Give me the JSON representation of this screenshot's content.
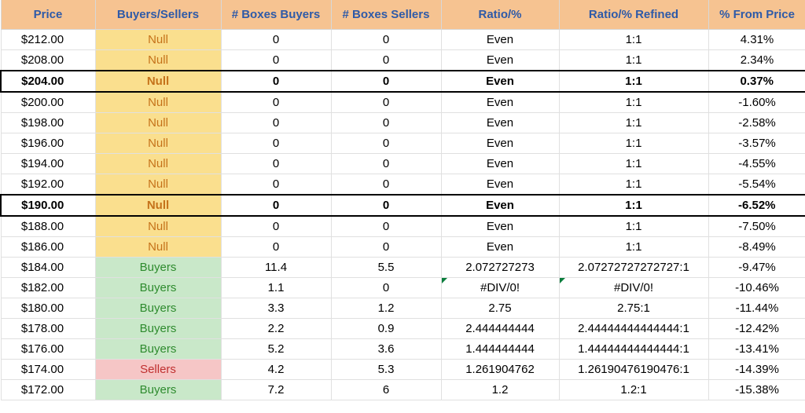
{
  "table": {
    "columns": [
      "Price",
      "Buyers/Sellers",
      "# Boxes Buyers",
      "# Boxes Sellers",
      "Ratio/%",
      "Ratio/% Refined",
      "% From Price"
    ],
    "header_bg": "#f6c391",
    "header_text_color": "#2e5aa8",
    "null_bg": "#fadf8e",
    "null_text": "#c5721a",
    "buyers_bg": "#c9e8c9",
    "buyers_text": "#2e8b2e",
    "sellers_bg": "#f6c6c6",
    "sellers_text": "#c03030",
    "grid_color": "#e0e0e0",
    "font_size": 15,
    "rows": [
      {
        "price": "$212.00",
        "bs": "Null",
        "bs_kind": "null",
        "buy": "0",
        "sell": "0",
        "ratio": "Even",
        "refined": "1:1",
        "pct": "4.31%",
        "bold": false,
        "thick": false
      },
      {
        "price": "$208.00",
        "bs": "Null",
        "bs_kind": "null",
        "buy": "0",
        "sell": "0",
        "ratio": "Even",
        "refined": "1:1",
        "pct": "2.34%",
        "bold": false,
        "thick": false
      },
      {
        "price": "$204.00",
        "bs": "Null",
        "bs_kind": "null",
        "buy": "0",
        "sell": "0",
        "ratio": "Even",
        "refined": "1:1",
        "pct": "0.37%",
        "bold": true,
        "thick": true
      },
      {
        "price": "$200.00",
        "bs": "Null",
        "bs_kind": "null",
        "buy": "0",
        "sell": "0",
        "ratio": "Even",
        "refined": "1:1",
        "pct": "-1.60%",
        "bold": false,
        "thick": false
      },
      {
        "price": "$198.00",
        "bs": "Null",
        "bs_kind": "null",
        "buy": "0",
        "sell": "0",
        "ratio": "Even",
        "refined": "1:1",
        "pct": "-2.58%",
        "bold": false,
        "thick": false
      },
      {
        "price": "$196.00",
        "bs": "Null",
        "bs_kind": "null",
        "buy": "0",
        "sell": "0",
        "ratio": "Even",
        "refined": "1:1",
        "pct": "-3.57%",
        "bold": false,
        "thick": false
      },
      {
        "price": "$194.00",
        "bs": "Null",
        "bs_kind": "null",
        "buy": "0",
        "sell": "0",
        "ratio": "Even",
        "refined": "1:1",
        "pct": "-4.55%",
        "bold": false,
        "thick": false
      },
      {
        "price": "$192.00",
        "bs": "Null",
        "bs_kind": "null",
        "buy": "0",
        "sell": "0",
        "ratio": "Even",
        "refined": "1:1",
        "pct": "-5.54%",
        "bold": false,
        "thick": false
      },
      {
        "price": "$190.00",
        "bs": "Null",
        "bs_kind": "null",
        "buy": "0",
        "sell": "0",
        "ratio": "Even",
        "refined": "1:1",
        "pct": "-6.52%",
        "bold": true,
        "thick": true
      },
      {
        "price": "$188.00",
        "bs": "Null",
        "bs_kind": "null",
        "buy": "0",
        "sell": "0",
        "ratio": "Even",
        "refined": "1:1",
        "pct": "-7.50%",
        "bold": false,
        "thick": false
      },
      {
        "price": "$186.00",
        "bs": "Null",
        "bs_kind": "null",
        "buy": "0",
        "sell": "0",
        "ratio": "Even",
        "refined": "1:1",
        "pct": "-8.49%",
        "bold": false,
        "thick": false
      },
      {
        "price": "$184.00",
        "bs": "Buyers",
        "bs_kind": "buyers",
        "buy": "11.4",
        "sell": "5.5",
        "ratio": "2.072727273",
        "refined": "2.07272727272727:1",
        "pct": "-9.47%",
        "bold": false,
        "thick": false
      },
      {
        "price": "$182.00",
        "bs": "Buyers",
        "bs_kind": "buyers",
        "buy": "1.1",
        "sell": "0",
        "ratio": "#DIV/0!",
        "refined": "#DIV/0!",
        "pct": "-10.46%",
        "bold": false,
        "thick": false,
        "err": true
      },
      {
        "price": "$180.00",
        "bs": "Buyers",
        "bs_kind": "buyers",
        "buy": "3.3",
        "sell": "1.2",
        "ratio": "2.75",
        "refined": "2.75:1",
        "pct": "-11.44%",
        "bold": false,
        "thick": false
      },
      {
        "price": "$178.00",
        "bs": "Buyers",
        "bs_kind": "buyers",
        "buy": "2.2",
        "sell": "0.9",
        "ratio": "2.444444444",
        "refined": "2.44444444444444:1",
        "pct": "-12.42%",
        "bold": false,
        "thick": false
      },
      {
        "price": "$176.00",
        "bs": "Buyers",
        "bs_kind": "buyers",
        "buy": "5.2",
        "sell": "3.6",
        "ratio": "1.444444444",
        "refined": "1.44444444444444:1",
        "pct": "-13.41%",
        "bold": false,
        "thick": false
      },
      {
        "price": "$174.00",
        "bs": "Sellers",
        "bs_kind": "sellers",
        "buy": "4.2",
        "sell": "5.3",
        "ratio": "1.261904762",
        "refined": "1.26190476190476:1",
        "pct": "-14.39%",
        "bold": false,
        "thick": false
      },
      {
        "price": "$172.00",
        "bs": "Buyers",
        "bs_kind": "buyers",
        "buy": "7.2",
        "sell": "6",
        "ratio": "1.2",
        "refined": "1.2:1",
        "pct": "-15.38%",
        "bold": false,
        "thick": false
      }
    ]
  }
}
